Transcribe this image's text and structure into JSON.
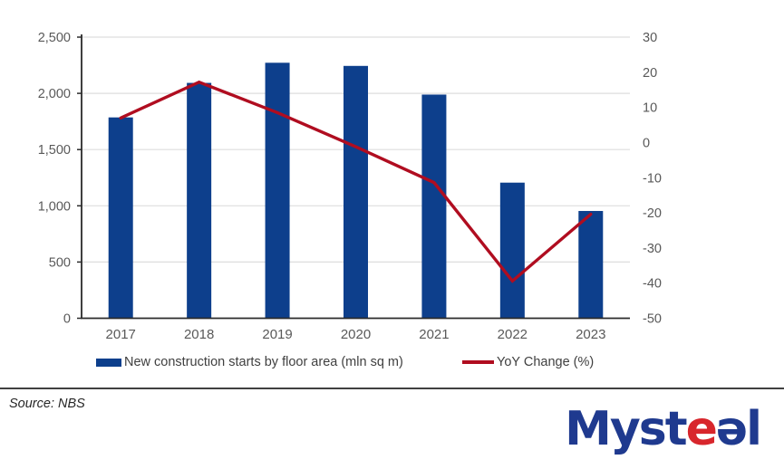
{
  "chart_data": {
    "type": "combo-bar-line",
    "categories": [
      "2017",
      "2018",
      "2019",
      "2020",
      "2021",
      "2022",
      "2023"
    ],
    "series": [
      {
        "name": "New construction starts by floor area (mln sq m)",
        "type": "bar",
        "axis": "left",
        "color": "#0D3F8C",
        "values": [
          1786,
          2093,
          2272,
          2244,
          1989,
          1206,
          954
        ]
      },
      {
        "name": "YoY Change (%)",
        "type": "line",
        "axis": "right",
        "color": "#B00D20",
        "values": [
          7.0,
          17.2,
          8.5,
          -1.2,
          -11.4,
          -39.4,
          -20.4
        ]
      }
    ],
    "left_axis": {
      "min": 0,
      "max": 2500,
      "tick_values": [
        0,
        500,
        1000,
        1500,
        2000,
        2500
      ],
      "tick_labels": [
        "0",
        "500",
        "1,000",
        "1,500",
        "2,000",
        "2,500"
      ]
    },
    "right_axis": {
      "min": -50,
      "max": 30,
      "tick_values": [
        30,
        20,
        10,
        0,
        -10,
        -20,
        -30,
        -40,
        -50
      ],
      "tick_labels": [
        "30",
        "20",
        "10",
        "0",
        "-10",
        "-20",
        "-30",
        "-40",
        "-50"
      ]
    },
    "grid": true,
    "legend_position": "bottom",
    "title": "",
    "xlabel": "",
    "ylabel": ""
  },
  "colors": {
    "bar": "#0D3F8C",
    "line": "#B00D20",
    "gridline": "#DEDEDE",
    "axis_line": "#2B2B2B",
    "tick_text": "#595959",
    "legend_text": "#404040",
    "logo_blue": "#1F3A8F",
    "logo_red": "#D8262C"
  },
  "source": {
    "text": "Source: NBS"
  },
  "logo": {
    "text": "Mysteel",
    "part1": "Myst",
    "part2": "e",
    "part3": "ə",
    "part4": "l"
  }
}
